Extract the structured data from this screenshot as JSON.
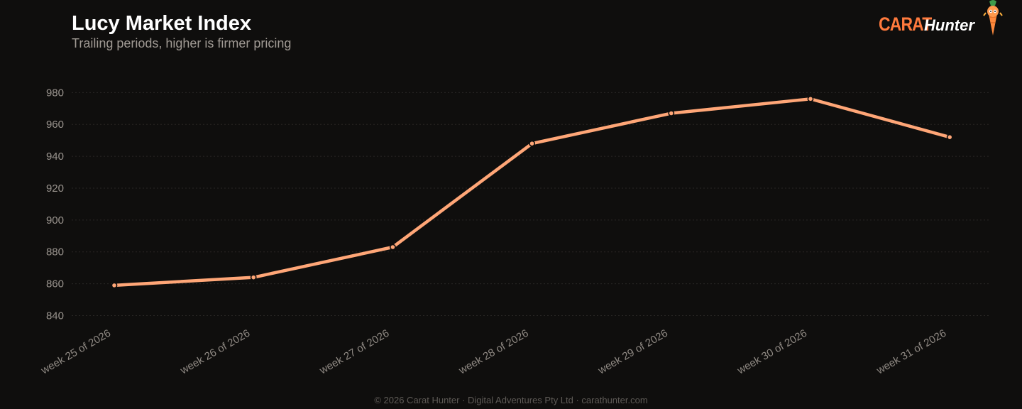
{
  "header": {
    "title": "Lucy Market Index",
    "subtitle": "Trailing periods, higher is firmer pricing"
  },
  "brand": {
    "logo_word": "CARAT",
    "logo_word2": "Hunter",
    "mascot_icon": "carrot-mascot-icon",
    "accent_color": "#ff7a3d"
  },
  "footer": {
    "text": "© 2026 Carat Hunter · Digital Adventures Pty Ltd · carathunter.com"
  },
  "chart_data": {
    "type": "line",
    "title": "Lucy Market Index",
    "subtitle": "Trailing periods, higher is firmer pricing",
    "xlabel": "",
    "ylabel": "",
    "categories": [
      "week 25 of 2026",
      "week 26 of 2026",
      "week 27 of 2026",
      "week 28 of 2026",
      "week 29 of 2026",
      "week 30 of 2026",
      "week 31 of 2026"
    ],
    "series": [
      {
        "values": [
          859,
          864,
          883,
          948,
          967,
          976,
          952
        ],
        "color": "#ffa677"
      }
    ],
    "yticks": [
      840,
      860,
      880,
      900,
      920,
      940,
      960,
      980
    ],
    "ylim": [
      838,
      982
    ],
    "grid": true,
    "legend": "none"
  }
}
